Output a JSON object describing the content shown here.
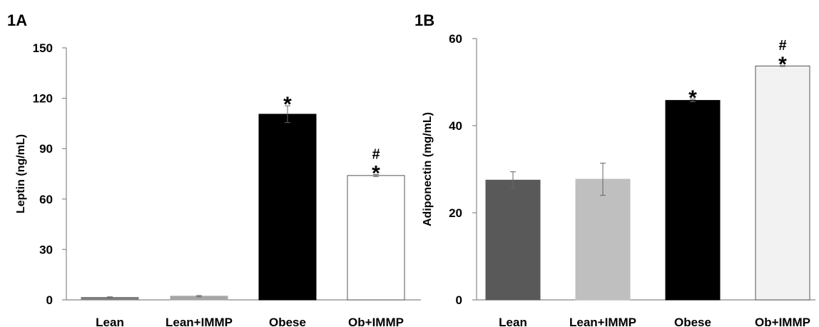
{
  "chart_data": [
    {
      "panel": "1A",
      "type": "bar",
      "ylabel": "Leptin (ng/mL)",
      "ylim": [
        0,
        150
      ],
      "yticks": [
        0,
        30,
        60,
        90,
        120,
        150
      ],
      "categories": [
        "Lean",
        "Lean+IMMP",
        "Obese",
        "Ob+IMMP"
      ],
      "values": [
        1.5,
        2.2,
        110.5,
        74.0
      ],
      "errors": [
        0.3,
        0.4,
        5.0,
        0.6
      ],
      "colors": [
        "#7f7f7f",
        "#a6a6a6",
        "#000000",
        "#ffffff"
      ],
      "significance": [
        [],
        [],
        [
          "*"
        ],
        [
          "#",
          "*"
        ]
      ],
      "grid": false
    },
    {
      "panel": "1B",
      "type": "bar",
      "ylabel": "Adiponectin (mg/mL)",
      "ylim": [
        0,
        60
      ],
      "yticks": [
        0,
        20,
        40,
        60
      ],
      "categories": [
        "Lean",
        "Lean+IMMP",
        "Obese",
        "Ob+IMMP"
      ],
      "values": [
        27.5,
        27.7,
        45.8,
        53.7
      ],
      "errors": [
        1.9,
        3.7,
        0.3,
        0.1
      ],
      "colors": [
        "#595959",
        "#bfbfbf",
        "#000000",
        "#f2f2f2"
      ],
      "significance": [
        [],
        [],
        [
          "*"
        ],
        [
          "#",
          "*"
        ]
      ],
      "grid": false
    }
  ]
}
